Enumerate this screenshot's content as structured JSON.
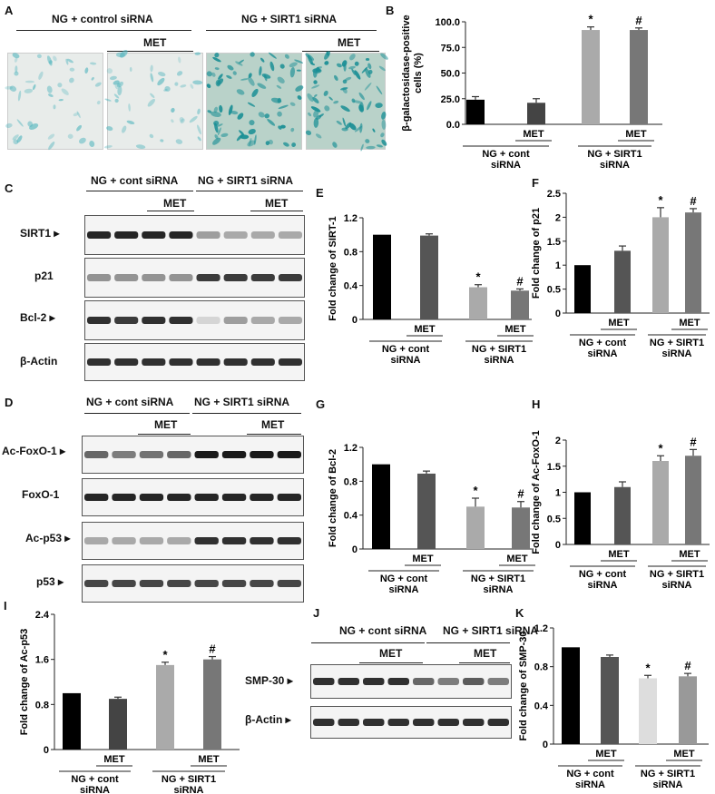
{
  "panel_letters": [
    "A",
    "B",
    "C",
    "D",
    "E",
    "F",
    "G",
    "H",
    "I",
    "J",
    "K"
  ],
  "panel_a": {
    "group_ctrl": "NG + control siRNA",
    "group_sirt1": "NG + SIRT1 siRNA",
    "met": "MET",
    "images": [
      {
        "tint": "light",
        "name": "micrograph-ctrl"
      },
      {
        "tint": "light",
        "name": "micrograph-ctrl-met"
      },
      {
        "tint": "dense",
        "name": "micrograph-sirt1"
      },
      {
        "tint": "dense",
        "name": "micrograph-sirt1-met"
      }
    ]
  },
  "blot_c": {
    "group_ctrl": "NG + cont siRNA",
    "group_sirt1": "NG + SIRT1 siRNA",
    "met": "MET",
    "rows": [
      {
        "label": "SIRT1",
        "intensity": [
          0.9,
          0.9,
          0.9,
          0.9,
          0.35,
          0.3,
          0.3,
          0.3
        ]
      },
      {
        "label": "p21",
        "intensity": [
          0.4,
          0.4,
          0.4,
          0.4,
          0.8,
          0.8,
          0.8,
          0.8
        ]
      },
      {
        "label": "Bcl-2",
        "intensity": [
          0.85,
          0.8,
          0.85,
          0.85,
          0.1,
          0.35,
          0.3,
          0.3
        ]
      },
      {
        "label": "β-Actin",
        "intensity": [
          0.85,
          0.85,
          0.85,
          0.85,
          0.85,
          0.85,
          0.85,
          0.85
        ]
      }
    ]
  },
  "blot_d": {
    "group_ctrl": "NG + cont siRNA",
    "group_sirt1": "NG + SIRT1 siRNA",
    "met": "MET",
    "rows": [
      {
        "label": "Ac-FoxO-1",
        "intensity": [
          0.6,
          0.5,
          0.55,
          0.6,
          0.95,
          0.95,
          0.95,
          0.95
        ]
      },
      {
        "label": "FoxO-1",
        "intensity": [
          0.9,
          0.9,
          0.9,
          0.9,
          0.9,
          0.9,
          0.9,
          0.9
        ]
      },
      {
        "label": "Ac-p53",
        "intensity": [
          0.3,
          0.3,
          0.3,
          0.3,
          0.85,
          0.85,
          0.85,
          0.85
        ]
      },
      {
        "label": "p53",
        "intensity": [
          0.75,
          0.75,
          0.75,
          0.75,
          0.75,
          0.75,
          0.75,
          0.75
        ]
      }
    ]
  },
  "blot_j": {
    "group_ctrl": "NG + cont siRNA",
    "group_sirt1": "NG + SIRT1 siRNA",
    "met": "MET",
    "rows": [
      {
        "label": "SMP-30",
        "intensity": [
          0.85,
          0.85,
          0.85,
          0.85,
          0.6,
          0.5,
          0.65,
          0.5
        ]
      },
      {
        "label": "β-Actin",
        "intensity": [
          0.85,
          0.85,
          0.85,
          0.85,
          0.85,
          0.85,
          0.85,
          0.85
        ]
      }
    ]
  },
  "chart_data": [
    {
      "panel": "B",
      "type": "bar",
      "ylabel": "β-galactosidase-positive cells (%)",
      "ylim": [
        0,
        100
      ],
      "yticks": [
        "0.0",
        "25.0",
        "50.0",
        "75.0",
        "100.0"
      ],
      "values": [
        24,
        21,
        92,
        92
      ],
      "errors": [
        3,
        4,
        3,
        2
      ],
      "colors": [
        "#000000",
        "#444444",
        "#aaaaaa",
        "#777777"
      ],
      "marks": [
        "",
        "",
        "*",
        "#"
      ],
      "met": "MET",
      "group1": [
        "NG + cont",
        "siRNA"
      ],
      "group2": [
        "NG + SIRT1",
        "siRNA"
      ]
    },
    {
      "panel": "E",
      "type": "bar",
      "ylabel": "Fold change of SIRT-1",
      "ylim": [
        0,
        1.2
      ],
      "yticks": [
        "0",
        "0.4",
        "0.8",
        "1.2"
      ],
      "values": [
        1.0,
        0.99,
        0.38,
        0.34
      ],
      "errors": [
        0,
        0.02,
        0.03,
        0.02
      ],
      "colors": [
        "#000000",
        "#555555",
        "#aaaaaa",
        "#777777"
      ],
      "marks": [
        "",
        "",
        "*",
        "#"
      ],
      "met": "MET",
      "group1": [
        "NG + cont",
        "siRNA"
      ],
      "group2": [
        "NG + SIRT1",
        "siRNA"
      ]
    },
    {
      "panel": "F",
      "type": "bar",
      "ylabel": "Fold change of p21",
      "ylim": [
        0,
        2.5
      ],
      "yticks": [
        "0",
        "0.5",
        "1",
        "1.5",
        "2",
        "2.5"
      ],
      "values": [
        1.0,
        1.3,
        2.0,
        2.1
      ],
      "errors": [
        0,
        0.1,
        0.2,
        0.08
      ],
      "colors": [
        "#000000",
        "#555555",
        "#aaaaaa",
        "#777777"
      ],
      "marks": [
        "",
        "",
        "*",
        "#"
      ],
      "met": "MET",
      "group1": [
        "NG + cont",
        "siRNA"
      ],
      "group2": [
        "NG + SIRT1",
        "siRNA"
      ]
    },
    {
      "panel": "G",
      "type": "bar",
      "ylabel": "Fold change of Bcl-2",
      "ylim": [
        0,
        1.2
      ],
      "yticks": [
        "0",
        "0.4",
        "0.8",
        "1.2"
      ],
      "values": [
        1.0,
        0.89,
        0.5,
        0.49
      ],
      "errors": [
        0,
        0.03,
        0.1,
        0.07
      ],
      "colors": [
        "#000000",
        "#555555",
        "#aaaaaa",
        "#777777"
      ],
      "marks": [
        "",
        "",
        "*",
        "#"
      ],
      "met": "MET",
      "group1": [
        "NG + cont",
        "siRNA"
      ],
      "group2": [
        "NG + SIRT1",
        "siRNA"
      ]
    },
    {
      "panel": "H",
      "type": "bar",
      "ylabel": "Fold change of Ac-FoxO-1",
      "ylim": [
        0,
        2
      ],
      "yticks": [
        "0",
        "0.5",
        "1",
        "1.5",
        "2"
      ],
      "values": [
        1.0,
        1.1,
        1.6,
        1.7
      ],
      "errors": [
        0,
        0.1,
        0.1,
        0.12
      ],
      "colors": [
        "#000000",
        "#555555",
        "#aaaaaa",
        "#777777"
      ],
      "marks": [
        "",
        "",
        "*",
        "#"
      ],
      "met": "MET",
      "group1": [
        "NG + cont",
        "siRNA"
      ],
      "group2": [
        "NG + SIRT1",
        "siRNA"
      ]
    },
    {
      "panel": "I",
      "type": "bar",
      "ylabel": "Fold change of Ac-p53",
      "ylim": [
        0,
        2.4
      ],
      "yticks": [
        "0",
        "0.8",
        "1.6",
        "2.4"
      ],
      "values": [
        1.0,
        0.9,
        1.5,
        1.6
      ],
      "errors": [
        0,
        0.03,
        0.05,
        0.05
      ],
      "colors": [
        "#000000",
        "#444444",
        "#aaaaaa",
        "#777777"
      ],
      "marks": [
        "",
        "",
        "*",
        "#"
      ],
      "met": "MET",
      "group1": [
        "NG + cont",
        "siRNA"
      ],
      "group2": [
        "NG + SIRT1",
        "siRNA"
      ]
    },
    {
      "panel": "K",
      "type": "bar",
      "ylabel": "Fold change of SMP-30",
      "ylim": [
        0,
        1.2
      ],
      "yticks": [
        "0",
        "0.4",
        "0.8",
        "1.2"
      ],
      "values": [
        1.0,
        0.9,
        0.68,
        0.7
      ],
      "errors": [
        0,
        0.02,
        0.03,
        0.03
      ],
      "colors": [
        "#000000",
        "#555555",
        "#dddddd",
        "#999999"
      ],
      "marks": [
        "",
        "",
        "*",
        "#"
      ],
      "met": "MET",
      "group1": [
        "NG + cont",
        "siRNA"
      ],
      "group2": [
        "NG + SIRT1",
        "siRNA"
      ]
    }
  ]
}
